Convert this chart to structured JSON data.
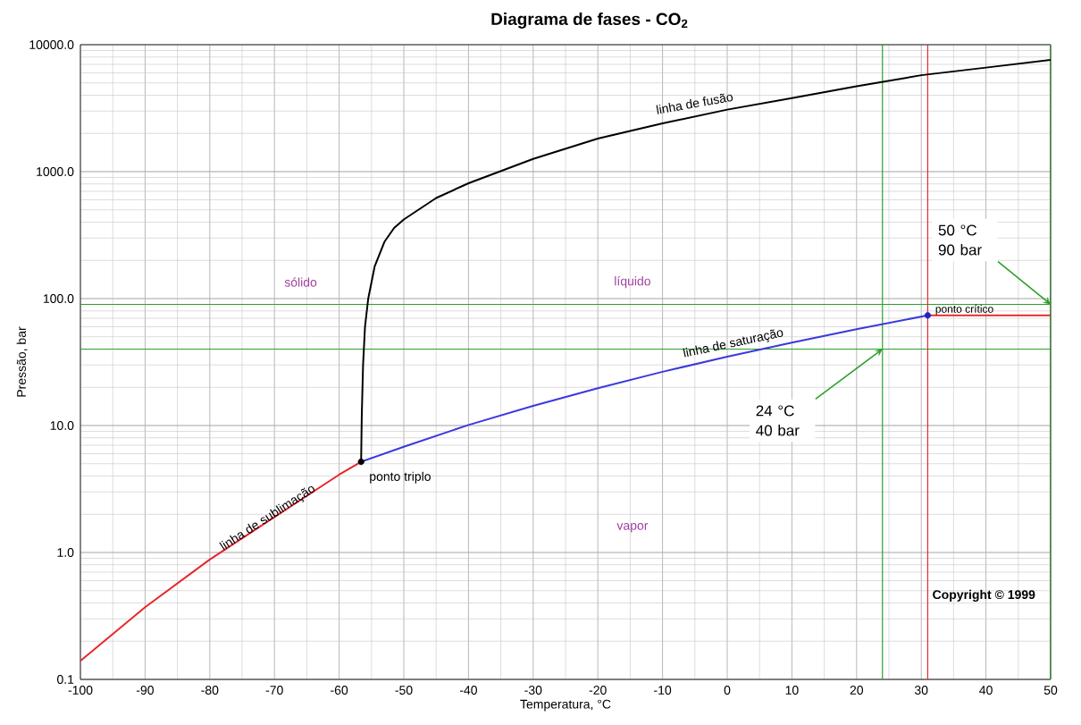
{
  "chart_data": {
    "type": "line",
    "title": "Diagrama de fases - CO$_{2}$",
    "xlabel": "Temperatura, °C",
    "ylabel": "Pressão, bar",
    "log": "y",
    "grid": true,
    "line_style": "solid",
    "xlim": [
      -100,
      50
    ],
    "xticks": [
      -100,
      -90,
      -80,
      -70,
      -60,
      -50,
      -40,
      -30,
      -20,
      -10,
      0,
      10,
      20,
      30,
      40,
      50
    ],
    "ylim": [
      0.1,
      10000
    ],
    "yticks": [
      0.1,
      {
        "value": 1,
        "label": "1.0"
      },
      {
        "value": 10,
        "label": "10.0"
      },
      {
        "value": 100,
        "label": "100.0"
      },
      {
        "value": 1000,
        "label": "1000.0"
      },
      {
        "value": 10000,
        "label": "10000.0"
      }
    ],
    "series": [
      {
        "color": "#e8262b",
        "x": [
          -100,
          -90,
          -80,
          -70,
          -60,
          -56.6
        ],
        "values": [
          0.14,
          0.37,
          0.88,
          1.9,
          4.1,
          5.18
        ]
      },
      {
        "color": "#3a3adc",
        "x": [
          -56.6,
          -50,
          -40,
          -30,
          -20,
          -10,
          0,
          10,
          20,
          31
        ],
        "values": [
          5.18,
          6.8,
          10.1,
          14.3,
          19.7,
          26.5,
          34.9,
          45,
          57.3,
          73.8
        ]
      },
      {
        "color": "#e8262b",
        "x": [
          31,
          50
        ],
        "values": [
          73.8,
          73.8
        ]
      },
      {
        "color": "#000000",
        "x": [
          -56.6,
          -56.5,
          -56.3,
          -56,
          -55.5,
          -54.5,
          -53,
          -51.5,
          -50,
          -45,
          -40,
          -30,
          -20,
          -10,
          0,
          10,
          20,
          30,
          40,
          50
        ],
        "values": [
          5.18,
          12,
          30,
          60,
          100,
          180,
          280,
          360,
          420,
          620,
          810,
          1260,
          1820,
          2400,
          3080,
          3800,
          4700,
          5750,
          6600,
          7600
        ]
      },
      {
        "type": "scatter",
        "marker": "circle",
        "colors": [
          "#000000",
          "#2020d0"
        ],
        "x": [
          -56.6,
          31
        ],
        "values": [
          5.18,
          73.8
        ]
      }
    ],
    "ref_lines": [
      {
        "axis": "x",
        "value": 24,
        "color": "#2ca02c"
      },
      {
        "axis": "x",
        "value": 50,
        "color": "#2ca02c"
      },
      {
        "axis": "y",
        "value": 40,
        "color": "#2ca02c"
      },
      {
        "axis": "y",
        "value": 90,
        "color": "#2ca02c"
      },
      {
        "axis": "x",
        "value": 31,
        "color": "#e8262b"
      }
    ],
    "annotations": [
      "linha de fusão",
      "linha de saturação",
      {
        "text": "linha de sublimação",
        "x": -71,
        "y": 1.87
      },
      "sólido",
      "líquido",
      "vapor",
      {
        "text": "ponto triplo",
        "x": -56.6,
        "y": 5.18
      },
      {
        "text": "ponto crítico",
        "x": 31,
        "y": 73.8
      },
      {
        "text": "50 °C 90 bar",
        "x": 50,
        "y": 90
      },
      {
        "text": "24 °C 40 bar",
        "x": 24,
        "y": 40
      },
      "Copyright © 1999"
    ]
  }
}
